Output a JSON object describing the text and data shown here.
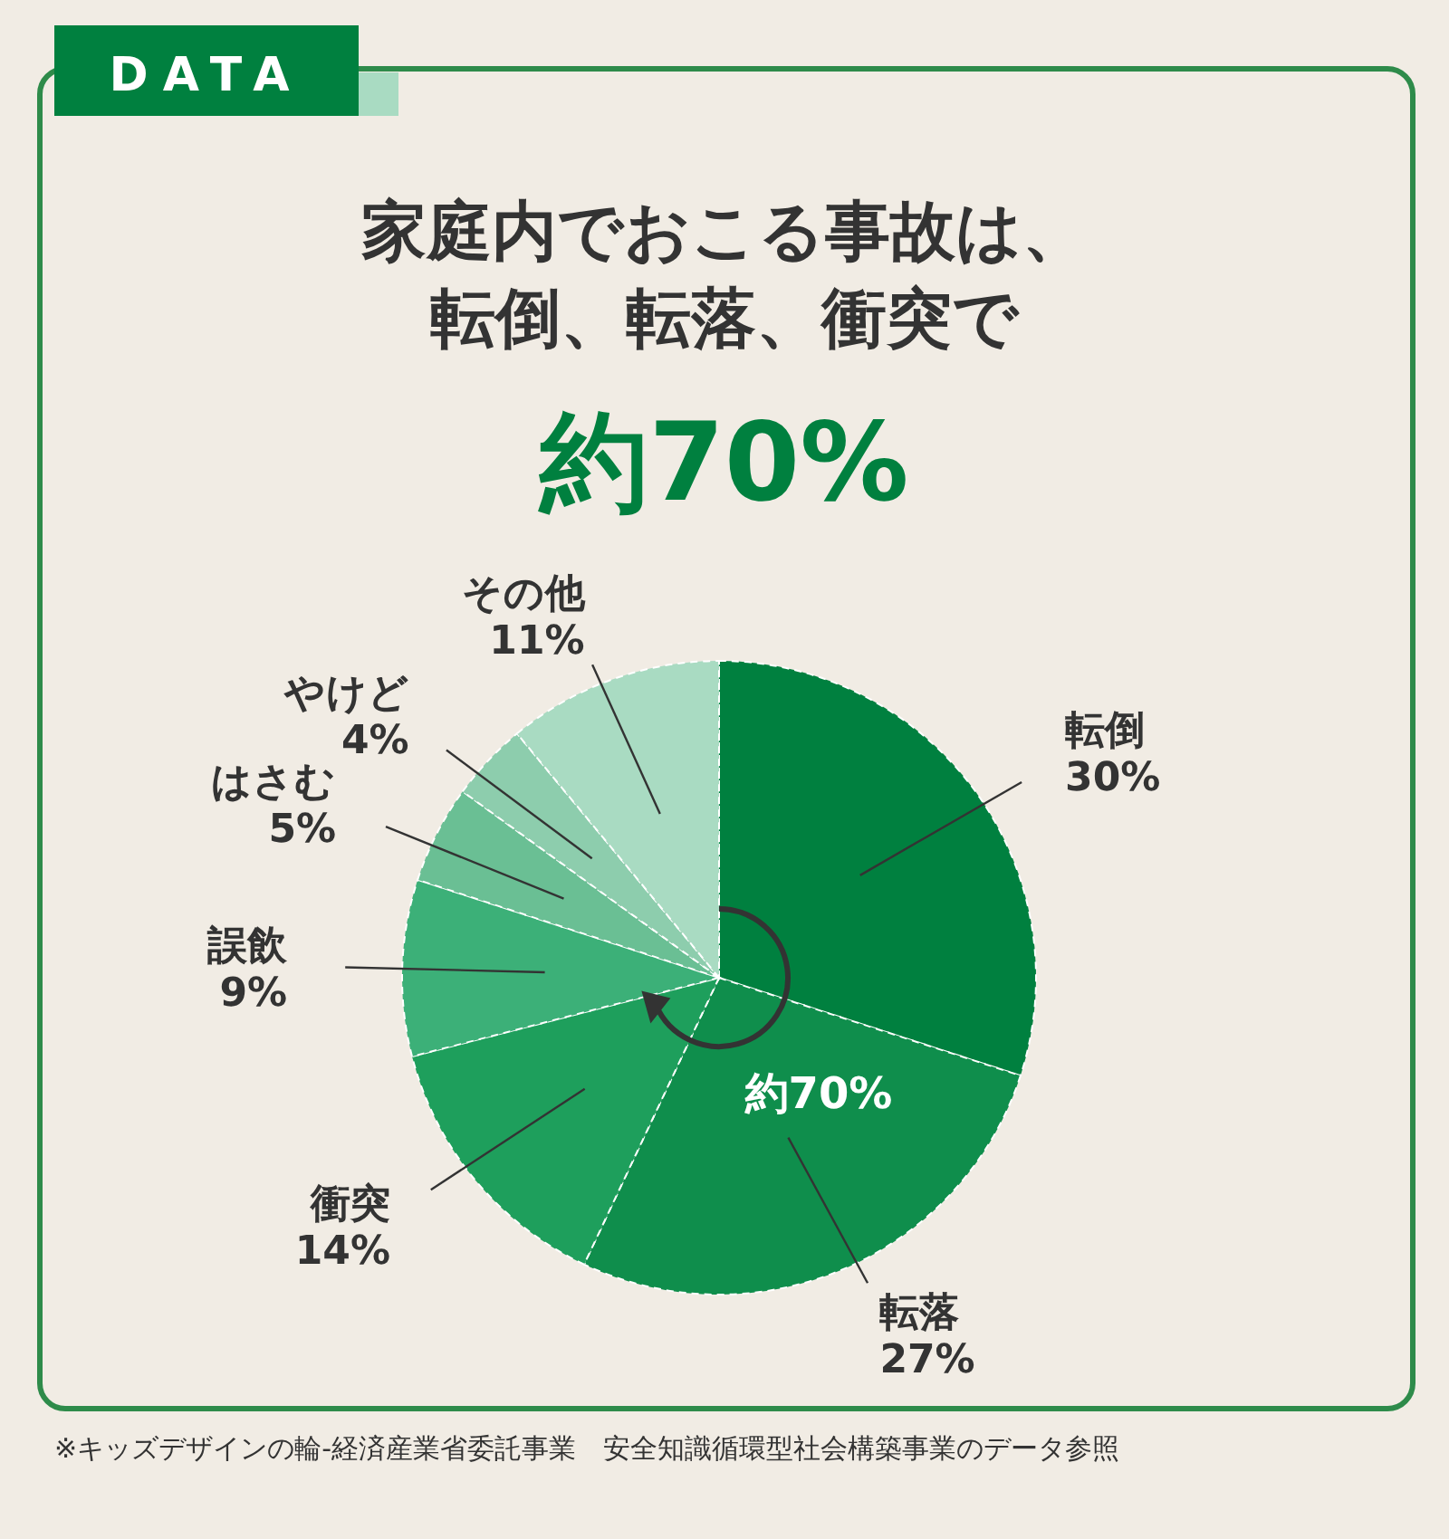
{
  "chart_data": {
    "type": "pie",
    "title": "家庭内でおこる事故は、転倒、転落、衝突で",
    "subtitle": "約70%",
    "categories": [
      "転倒",
      "転落",
      "衝突",
      "誤飲",
      "はさむ",
      "やけど",
      "その他"
    ],
    "values": [
      30,
      27,
      14,
      9,
      5,
      4,
      11
    ],
    "value_labels": [
      "30%",
      "27%",
      "14%",
      "9%",
      "5%",
      "4%",
      "11%"
    ],
    "colors": [
      "#00803f",
      "#0f8e4c",
      "#1e9f5c",
      "#3cb078",
      "#6abf94",
      "#8dcdad",
      "#a9dbc2"
    ],
    "annotations": [
      "DATA",
      {
        "text": "約70%"
      },
      "※キッズデザインの輪-経済産業省委託事業　安全知識循環型社会構築事業のデータ参照"
    ]
  }
}
